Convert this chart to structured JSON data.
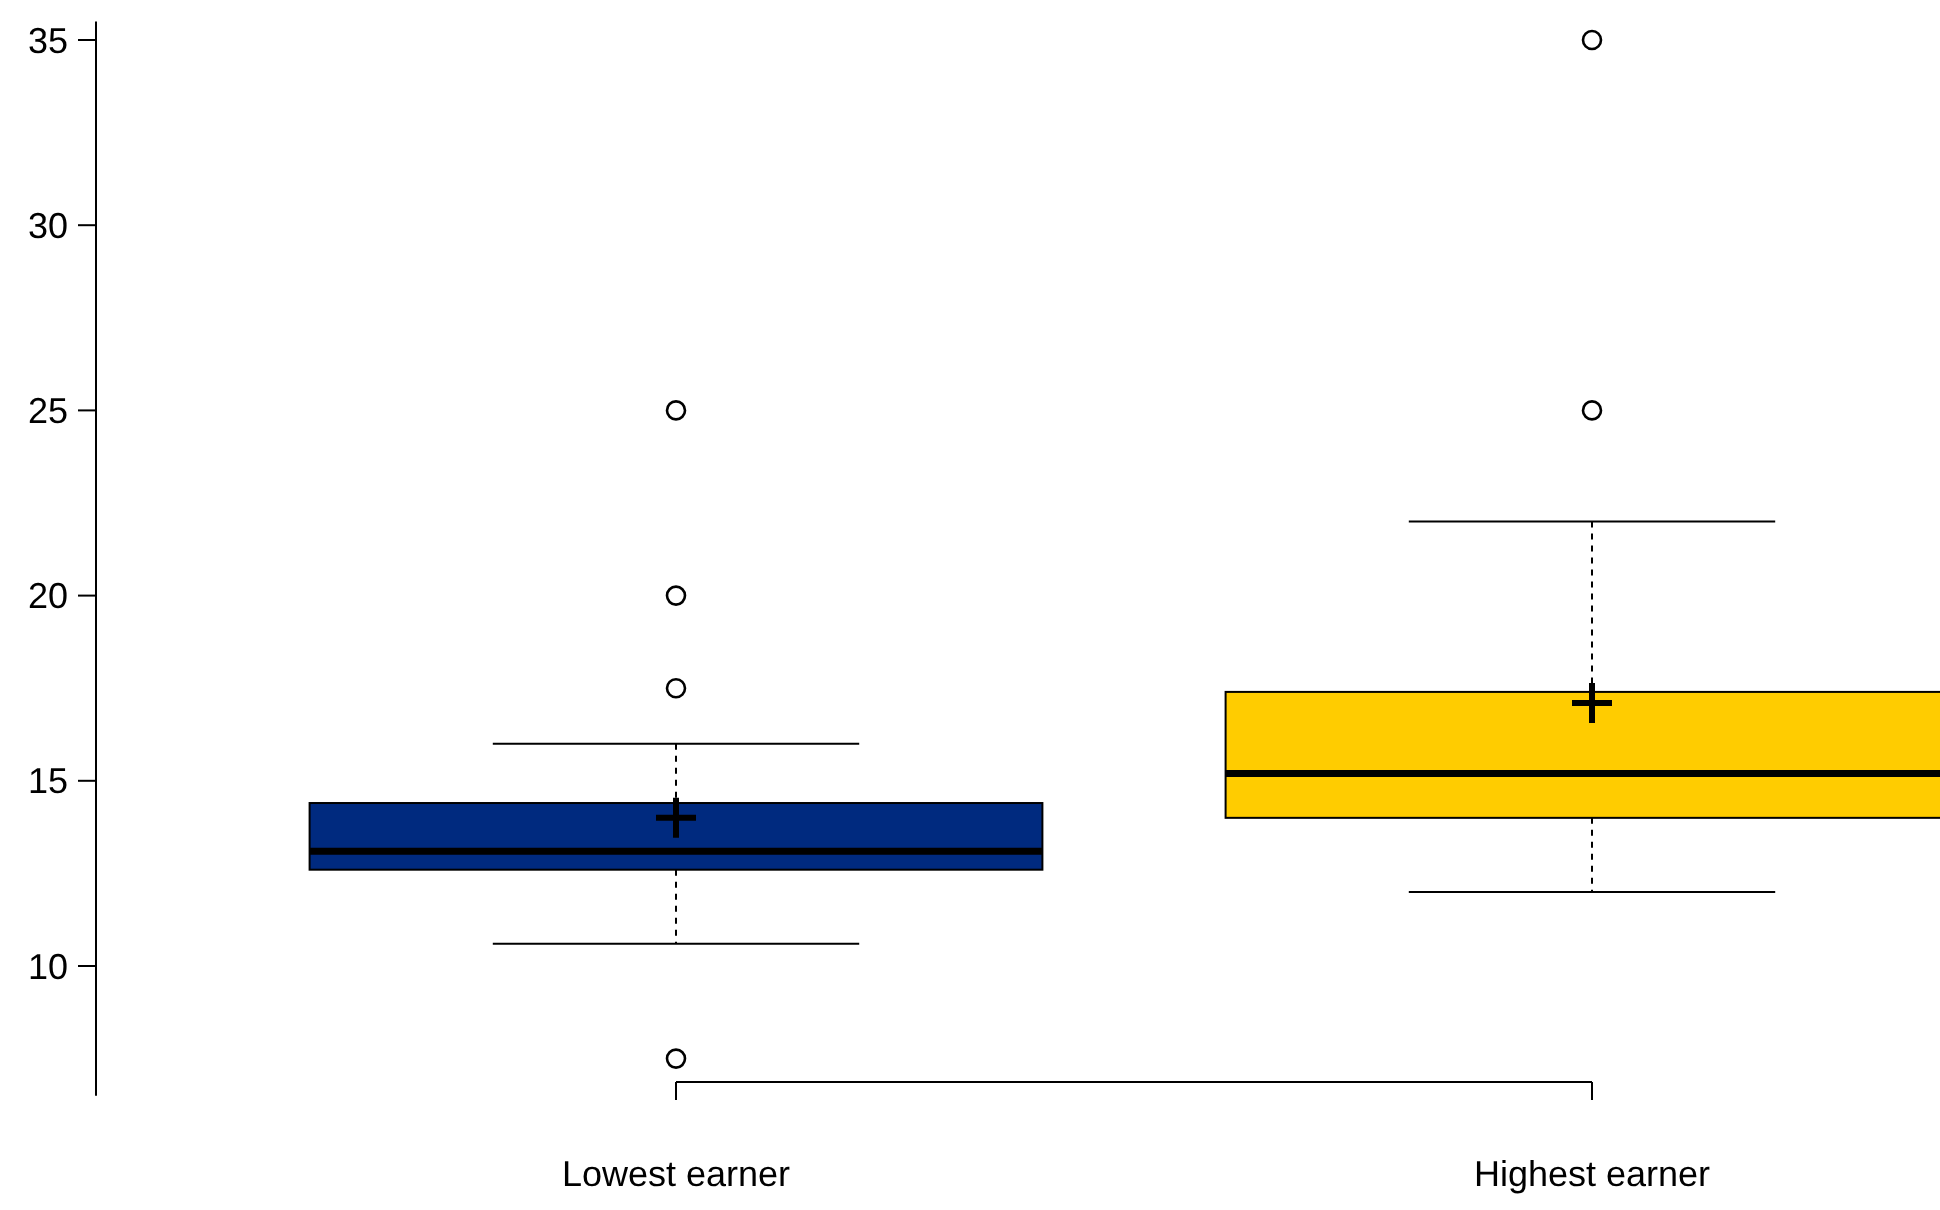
{
  "chart_data": {
    "type": "box",
    "categories": [
      "Lowest earner",
      "Highest earner"
    ],
    "colors": [
      "#002a7f",
      "#ffcc00"
    ],
    "boxes": [
      {
        "low": 10.6,
        "q1": 12.6,
        "median": 13.1,
        "q3": 14.4,
        "high": 16.0,
        "mean": 14.0,
        "outliers": [
          25,
          20,
          17.5,
          7.5
        ]
      },
      {
        "low": 12.0,
        "q1": 14.0,
        "median": 15.2,
        "q3": 17.4,
        "high": 22.0,
        "mean": 17.1,
        "outliers": [
          25,
          35
        ]
      }
    ],
    "ylim": [
      6.5,
      35.5
    ],
    "yticks": [
      10,
      15,
      20,
      25,
      30,
      35
    ],
    "grid": false
  }
}
